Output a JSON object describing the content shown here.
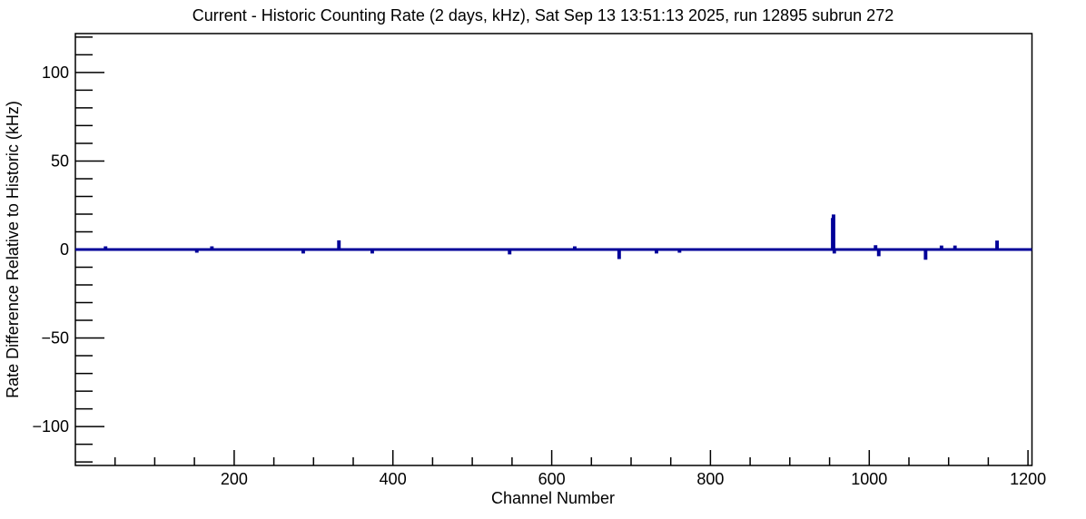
{
  "chart_data": {
    "type": "line",
    "title": "Current - Historic Counting Rate (2 days, kHz), Sat Sep 13 13:51:13 2025, run 12895 subrun 272",
    "xlabel": "Channel Number",
    "ylabel": "Rate Difference Relative to Historic (kHz)",
    "xlim": [
      0,
      1205
    ],
    "ylim": [
      -122,
      122
    ],
    "x_major_ticks": [
      200,
      400,
      600,
      800,
      1000,
      1200
    ],
    "x_minor_step": 50,
    "y_major_ticks": [
      -100,
      -50,
      0,
      50,
      100
    ],
    "y_minor_step": 10,
    "grid": false,
    "legend": false,
    "background_color": "#ffffff",
    "frame_color": "#000000",
    "line_color": "#000099",
    "baseline_value": 0,
    "spikes": [
      {
        "channel": 38,
        "value": 1.0
      },
      {
        "channel": 153,
        "value": -1.0
      },
      {
        "channel": 172,
        "value": 1.0
      },
      {
        "channel": 287,
        "value": -1.5
      },
      {
        "channel": 332,
        "value": 4.4
      },
      {
        "channel": 374,
        "value": -1.5
      },
      {
        "channel": 547,
        "value": -2.0
      },
      {
        "channel": 629,
        "value": 1.0
      },
      {
        "channel": 685,
        "value": -4.6
      },
      {
        "channel": 732,
        "value": -1.5
      },
      {
        "channel": 761,
        "value": -1.0
      },
      {
        "channel": 954,
        "value": 17.0
      },
      {
        "channel": 955,
        "value": 19.0
      },
      {
        "channel": 956,
        "value": -1.5
      },
      {
        "channel": 1008,
        "value": 1.7
      },
      {
        "channel": 1012,
        "value": -3.0
      },
      {
        "channel": 1071,
        "value": -5.0
      },
      {
        "channel": 1091,
        "value": 1.5
      },
      {
        "channel": 1108,
        "value": 1.5
      },
      {
        "channel": 1161,
        "value": 4.3
      }
    ]
  }
}
